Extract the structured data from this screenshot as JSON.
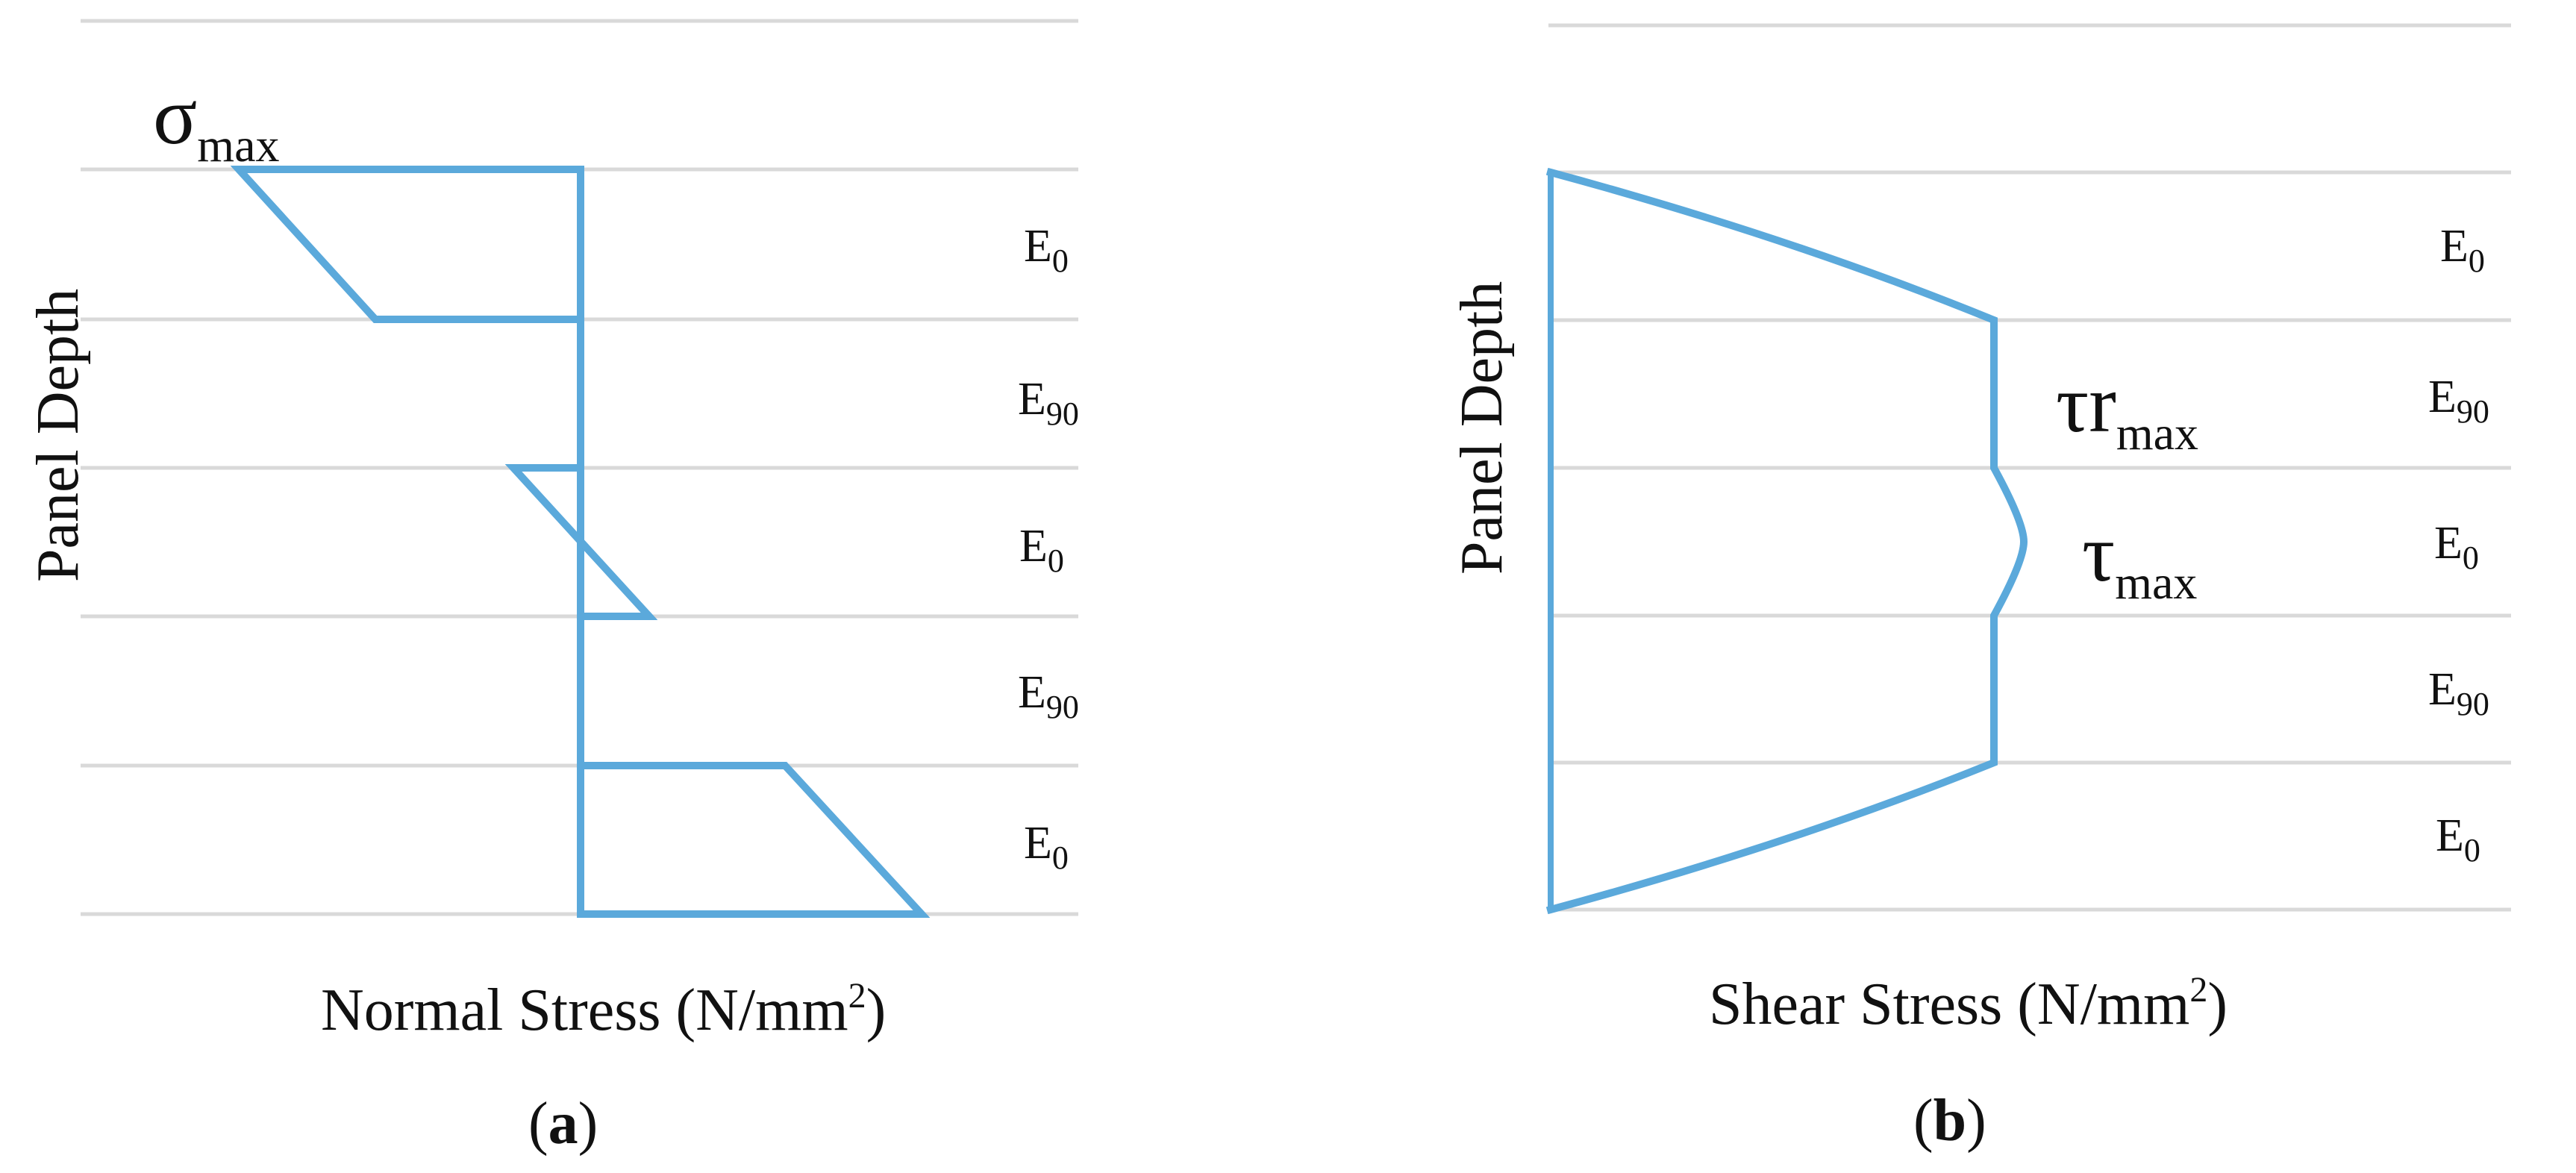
{
  "panels": [
    {
      "id": "a",
      "y_axis_label": "Panel Depth",
      "x_axis_label": "Normal Stress (N/mm",
      "x_axis_unit_sup": "2",
      "x_axis_label_close": ")",
      "caption_open": "(",
      "caption_letter": "a",
      "caption_close": ")",
      "peak_symbol": "σ",
      "peak_symbol_sub": "max",
      "layers": [
        {
          "label": "E",
          "sub": "0"
        },
        {
          "label": "E",
          "sub": "90"
        },
        {
          "label": "E",
          "sub": "0"
        },
        {
          "label": "E",
          "sub": "90"
        },
        {
          "label": "E",
          "sub": "0"
        }
      ]
    },
    {
      "id": "b",
      "y_axis_label": "Panel Depth",
      "x_axis_label": "Shear Stress (N/mm",
      "x_axis_unit_sup": "2",
      "x_axis_label_close": ")",
      "caption_open": "(",
      "caption_letter": "b",
      "caption_close": ")",
      "rolling_shear_symbol": "τr",
      "rolling_shear_sub": "max",
      "max_shear_symbol": "τ",
      "max_shear_sub": "max",
      "layers": [
        {
          "label": "E",
          "sub": "0"
        },
        {
          "label": "E",
          "sub": "90"
        },
        {
          "label": "E",
          "sub": "0"
        },
        {
          "label": "E",
          "sub": "90"
        },
        {
          "label": "E",
          "sub": "0"
        }
      ]
    }
  ],
  "colors": {
    "stress_line": "#5ba9db",
    "grid_line": "#d9d9d9",
    "text": "#111111"
  }
}
